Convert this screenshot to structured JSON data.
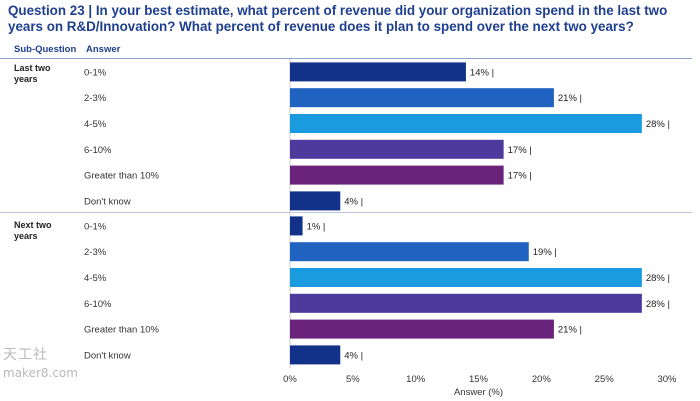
{
  "title": "Question 23 | In your best estimate, what percent of revenue did your organization spend in the last two years on R&D/Innovation? What percent of revenue does it plan to spend over the next two years?",
  "headers": {
    "sub_question": "Sub-Question",
    "answer": "Answer"
  },
  "watermark": {
    "line1": "天工社",
    "line2": "maker8.com"
  },
  "colors": {
    "title": "#1e3f8f",
    "series": [
      "#12328a",
      "#1f62c0",
      "#1a9bdf",
      "#4c3a9c",
      "#6a237a",
      "#12328a"
    ]
  },
  "chart_data": {
    "type": "bar",
    "orientation": "horizontal",
    "title": "Question 23 | In your best estimate, what percent of revenue did your organization spend in the last two years on R&D/Innovation? What percent of revenue does it plan to spend over the next two years?",
    "xlabel": "Answer (%)",
    "ylabel": "",
    "xlim": [
      0,
      30
    ],
    "xticks": [
      0,
      5,
      10,
      15,
      20,
      25,
      30
    ],
    "xtick_labels": [
      "0%",
      "5%",
      "10%",
      "15%",
      "20%",
      "25%",
      "30%"
    ],
    "categories": [
      "0-1%",
      "2-3%",
      "4-5%",
      "6-10%",
      "Greater than 10%",
      "Don't know"
    ],
    "groups": [
      {
        "name": "Last two years",
        "values": [
          14,
          21,
          28,
          17,
          17,
          4
        ],
        "labels": [
          "14% |",
          "21% |",
          "28% |",
          "17% |",
          "17% |",
          "4% |"
        ]
      },
      {
        "name": "Next two years",
        "values": [
          1,
          19,
          28,
          28,
          21,
          4
        ],
        "labels": [
          "1% |",
          "19% |",
          "28% |",
          "28% |",
          "21% |",
          "4% |"
        ]
      }
    ]
  }
}
